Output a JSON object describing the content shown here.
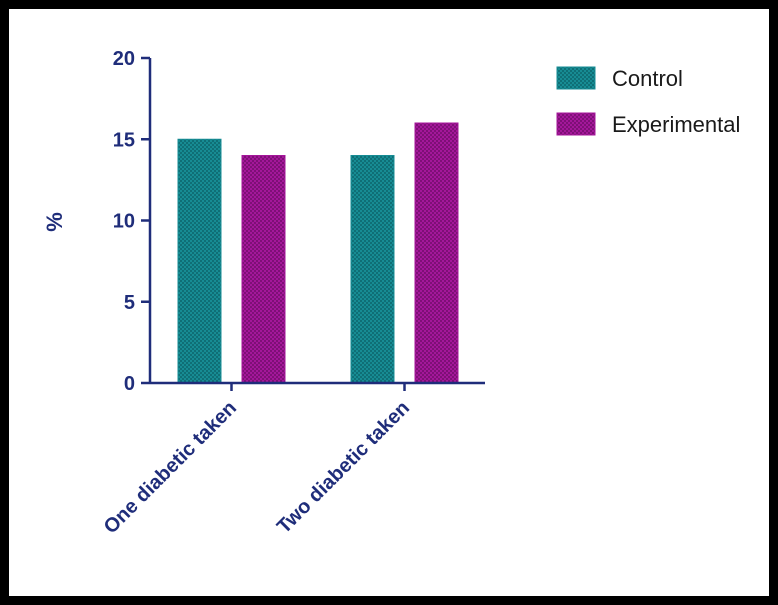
{
  "chart_data": {
    "type": "bar",
    "categories": [
      "One diabetic taken",
      "Two diabetic taken"
    ],
    "series": [
      {
        "name": "Control",
        "values": [
          15,
          14
        ],
        "color": "#178c94"
      },
      {
        "name": "Experimental",
        "values": [
          14,
          16
        ],
        "color": "#a4179a"
      }
    ],
    "title": "",
    "xlabel": "",
    "ylabel": "%",
    "ylim": [
      0,
      20
    ],
    "yticks": [
      0,
      5,
      10,
      15,
      20
    ],
    "grid": false,
    "legend": "top-right",
    "axis_color": "#1f2d7a"
  }
}
